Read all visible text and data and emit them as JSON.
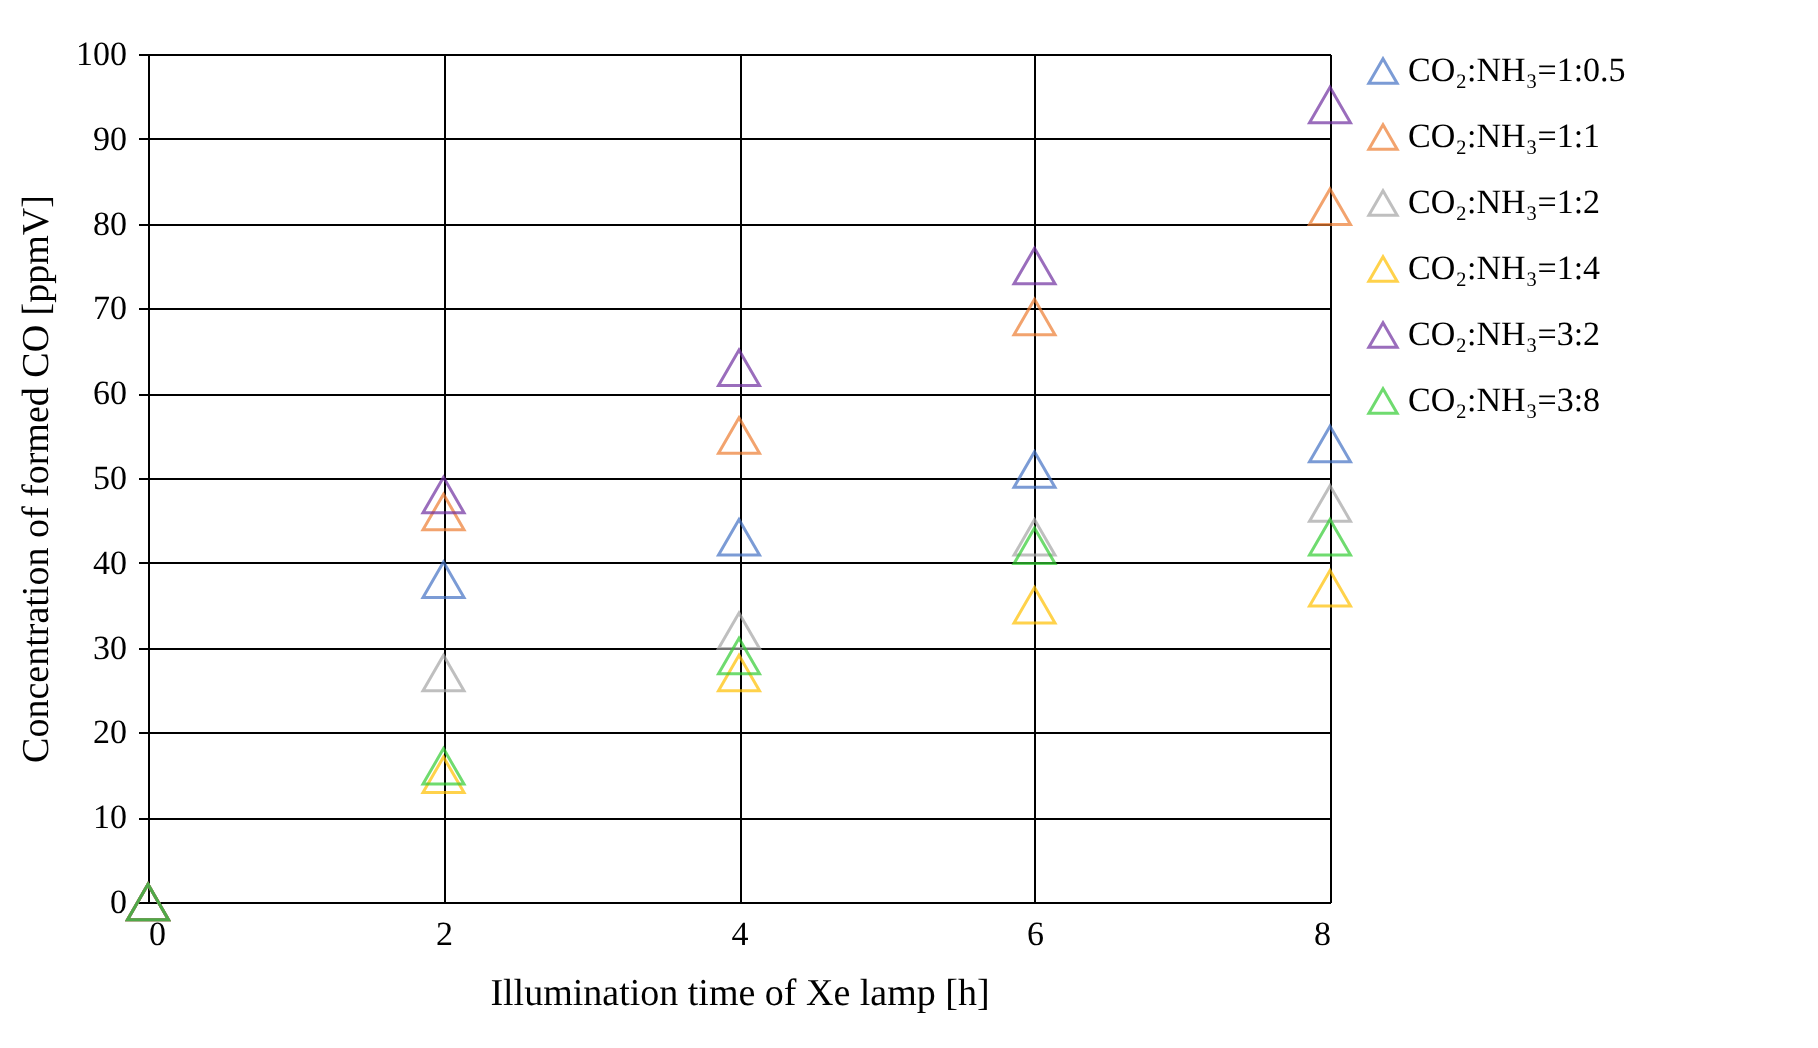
{
  "chart_data": {
    "type": "scatter",
    "xlabel": "Illumination time of Xe lamp [h]",
    "ylabel": "Concentration of formed CO [ppmV]",
    "x": [
      0,
      2,
      4,
      6,
      8
    ],
    "xlim": [
      0,
      8
    ],
    "xticks": [
      0,
      2,
      4,
      6,
      8
    ],
    "ylim": [
      0,
      100
    ],
    "yticks": [
      0,
      10,
      20,
      30,
      40,
      50,
      60,
      70,
      80,
      90,
      100
    ],
    "grid": true,
    "legend": "right",
    "marker": "triangle",
    "series": [
      {
        "name": "CO₂:NH₃=1:0.5",
        "color": "#4472c4",
        "values": [
          0,
          38,
          43,
          51,
          54
        ]
      },
      {
        "name": "CO₂:NH₃=1:1",
        "color": "#ed7d31",
        "values": [
          0,
          46,
          55,
          69,
          82
        ]
      },
      {
        "name": "CO₂:NH₃=1:2",
        "color": "#a5a5a5",
        "values": [
          0,
          27,
          32,
          43,
          47
        ]
      },
      {
        "name": "CO₂:NH₃=1:4",
        "color": "#ffc000",
        "values": [
          0,
          15,
          27,
          35,
          37
        ]
      },
      {
        "name": "CO₂:NH₃=3:2",
        "color": "#7030a0",
        "values": [
          0,
          48,
          63,
          75,
          94
        ]
      },
      {
        "name": "CO₂:NH₃=3:8",
        "color": "#33cc33",
        "values": [
          0,
          16,
          29,
          42,
          43
        ]
      }
    ]
  }
}
